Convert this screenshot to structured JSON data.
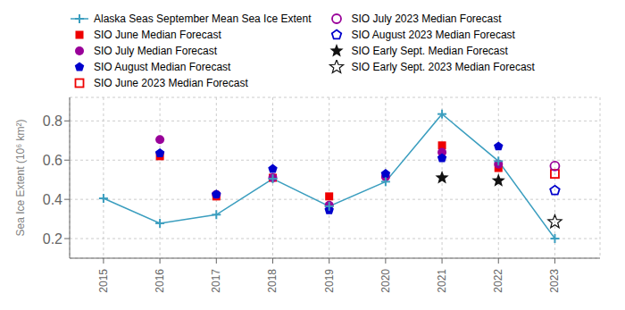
{
  "chart_data": {
    "type": "line",
    "x": [
      2015,
      2016,
      2017,
      2018,
      2019,
      2020,
      2021,
      2022,
      2023
    ],
    "xlim": [
      2014.4,
      2023.8
    ],
    "xticks": [
      2015,
      2016,
      2017,
      2018,
      2019,
      2020,
      2021,
      2022,
      2023
    ],
    "ylim": [
      0.1,
      0.92
    ],
    "yticks": [
      0.2,
      0.4,
      0.6,
      0.8
    ],
    "y_label": "Sea Ice Extent (10⁶ km²)",
    "grid": true,
    "legend": "top",
    "series": [
      {
        "name": "Alaska Seas September Mean Sea Ice Extent",
        "type": "line",
        "marker": "plus",
        "color": "#3B9EBF",
        "values": [
          0.405,
          0.278,
          0.322,
          0.505,
          0.365,
          0.49,
          0.835,
          0.595,
          0.2
        ]
      },
      {
        "name": "SIO June Median Forecast",
        "type": "scatter",
        "marker": "square",
        "color": "#EE0000",
        "values": [
          null,
          0.62,
          0.415,
          0.51,
          0.415,
          null,
          0.675,
          0.56,
          null
        ]
      },
      {
        "name": "SIO July Median Forecast",
        "type": "scatter",
        "marker": "circle",
        "color": "#990099",
        "values": [
          null,
          0.705,
          0.425,
          0.51,
          0.37,
          0.515,
          0.64,
          0.58,
          null
        ]
      },
      {
        "name": "SIO August Median Forecast",
        "type": "scatter",
        "marker": "pentagon",
        "color": "#0000CC",
        "values": [
          null,
          0.635,
          0.425,
          0.555,
          0.345,
          0.53,
          0.61,
          0.67,
          null
        ]
      },
      {
        "name": "SIO June 2023 Median Forecast",
        "type": "scatter",
        "marker": "square-open",
        "color": "#EE0000",
        "values": [
          null,
          null,
          null,
          null,
          null,
          null,
          null,
          null,
          0.53
        ]
      },
      {
        "name": "SIO July 2023 Median Forecast",
        "type": "scatter",
        "marker": "circle-open",
        "color": "#990099",
        "values": [
          null,
          null,
          null,
          null,
          null,
          null,
          null,
          null,
          0.57
        ]
      },
      {
        "name": "SIO August 2023 Median Forecast",
        "type": "scatter",
        "marker": "pentagon-open",
        "color": "#0000CC",
        "values": [
          null,
          null,
          null,
          null,
          null,
          null,
          null,
          null,
          0.445
        ]
      },
      {
        "name": "SIO Early Sept. Median Forecast",
        "type": "scatter",
        "marker": "star",
        "color": "#111111",
        "values": [
          null,
          null,
          null,
          null,
          null,
          null,
          0.51,
          0.495,
          null
        ]
      },
      {
        "name": "SIO Early Sept. 2023 Median Forecast",
        "type": "scatter",
        "marker": "star-open",
        "color": "#111111",
        "values": [
          null,
          null,
          null,
          null,
          null,
          null,
          null,
          null,
          0.285
        ]
      }
    ]
  }
}
